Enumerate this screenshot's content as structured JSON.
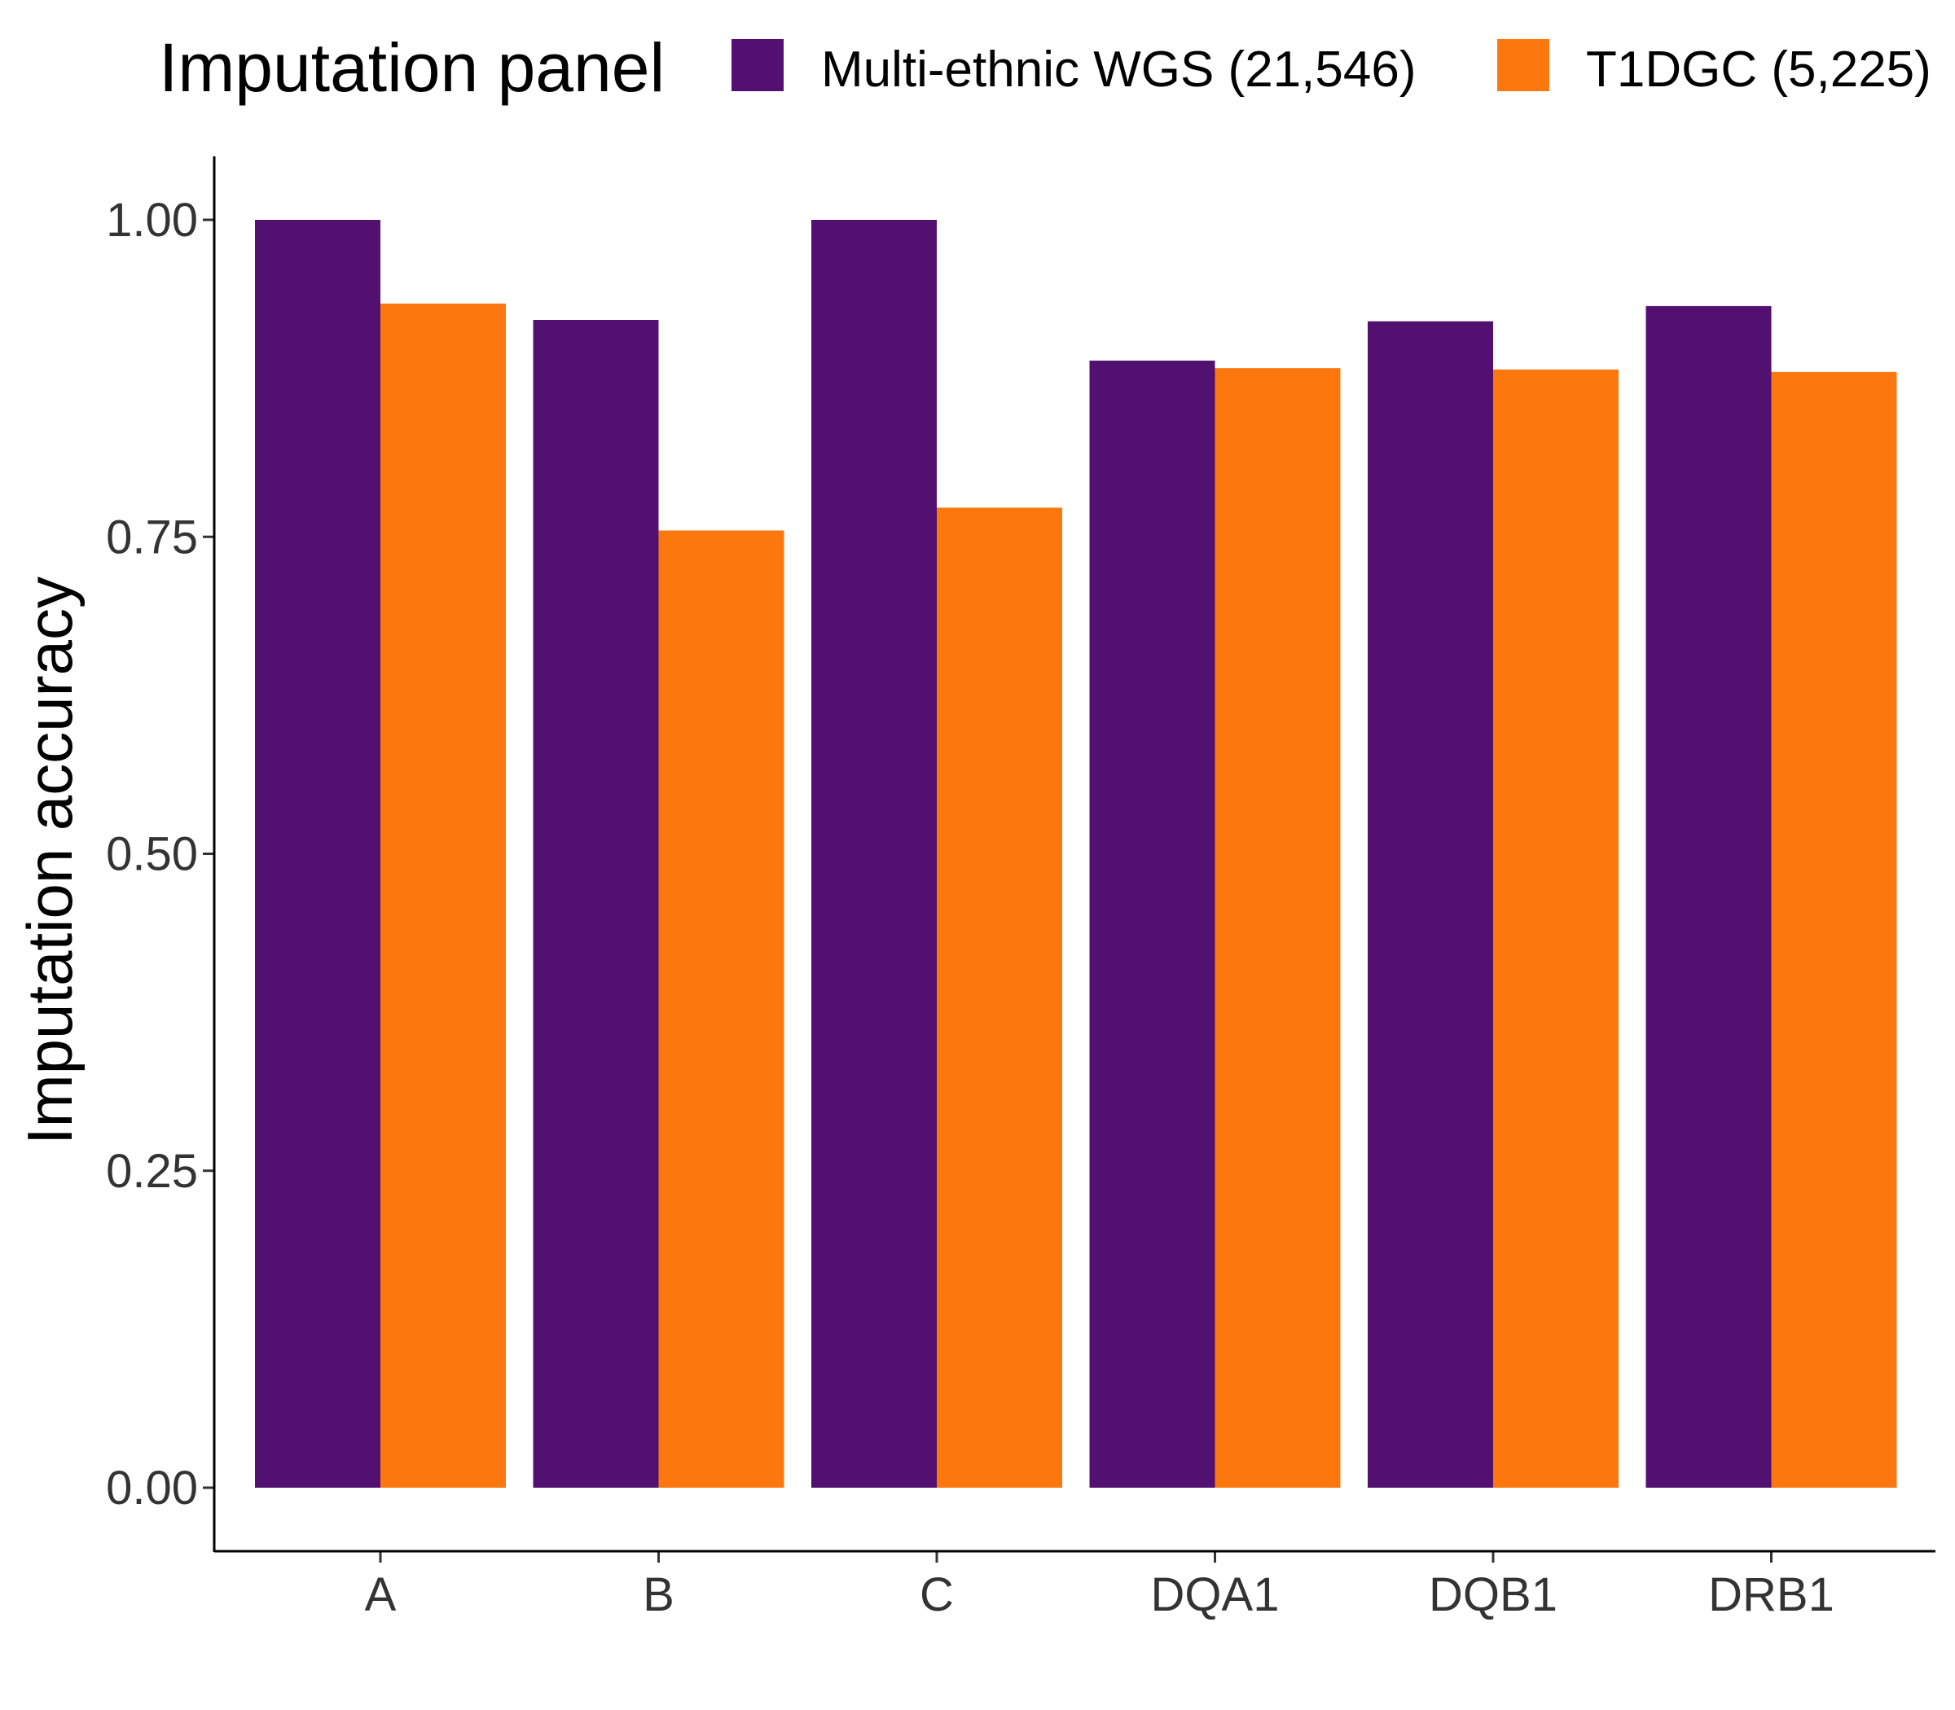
{
  "chart_data": {
    "type": "bar",
    "categories": [
      "A",
      "B",
      "C",
      "DQA1",
      "DQB1",
      "DRB1"
    ],
    "series": [
      {
        "name": "Multi-ethnic WGS (21,546)",
        "color": "#521071",
        "values": [
          1.0,
          0.921,
          1.0,
          0.889,
          0.92,
          0.932
        ]
      },
      {
        "name": "T1DGC (5,225)",
        "color": "#FC780F",
        "values": [
          0.934,
          0.755,
          0.773,
          0.883,
          0.882,
          0.88
        ]
      }
    ],
    "ylabel": "Imputation accuracy",
    "xlabel": "",
    "ylim": [
      -0.05,
      1.05
    ],
    "yticks": [
      0,
      0.25,
      0.5,
      0.75,
      1.0
    ],
    "ytick_labels": [
      "0.00",
      "0.25",
      "0.50",
      "0.75",
      "1.00"
    ],
    "legend": {
      "title": "Imputation panel",
      "position": "top"
    },
    "grid": false
  }
}
